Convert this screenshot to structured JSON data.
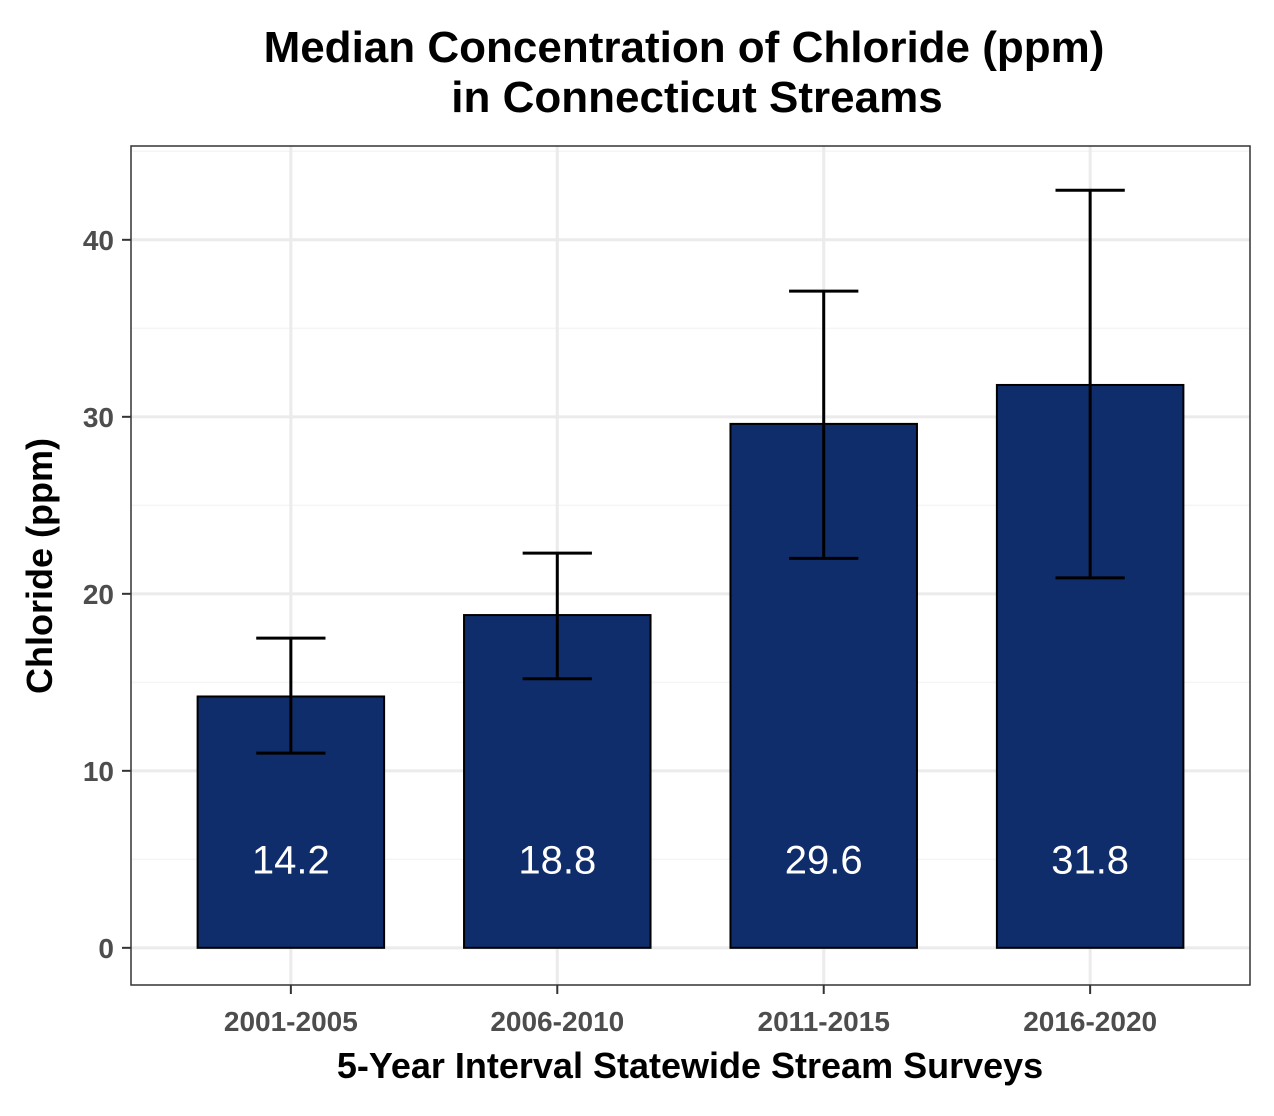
{
  "chart_data": {
    "type": "bar",
    "title": "Median Concentration of Chloride (ppm)",
    "subtitle": "in Connecticut Streams",
    "xlabel": "5-Year Interval Statewide Stream Surveys",
    "ylabel": "Chloride (ppm)",
    "categories": [
      "2001-2005",
      "2006-2010",
      "2011-2015",
      "2016-2020"
    ],
    "values": [
      14.2,
      18.8,
      29.6,
      31.8
    ],
    "value_labels": [
      "14.2",
      "18.8",
      "29.6",
      "31.8"
    ],
    "error_low": [
      11.0,
      15.2,
      22.0,
      20.9
    ],
    "error_high": [
      17.5,
      22.3,
      37.1,
      42.8
    ],
    "ylim": [
      -2.1,
      45.3
    ],
    "yticks": [
      0,
      10,
      20,
      30,
      40
    ],
    "ytick_labels": [
      "0",
      "10",
      "20",
      "30",
      "40"
    ],
    "grid": true,
    "legend": "none",
    "colors": {
      "bar_fill": "#0f2d6b",
      "bar_edge": "#000000",
      "error_bar": "#000000",
      "grid_major": "#ebebeb",
      "grid_minor": "#f5f5f5",
      "panel_border": "#333333",
      "bar_label": "#ffffff"
    }
  }
}
